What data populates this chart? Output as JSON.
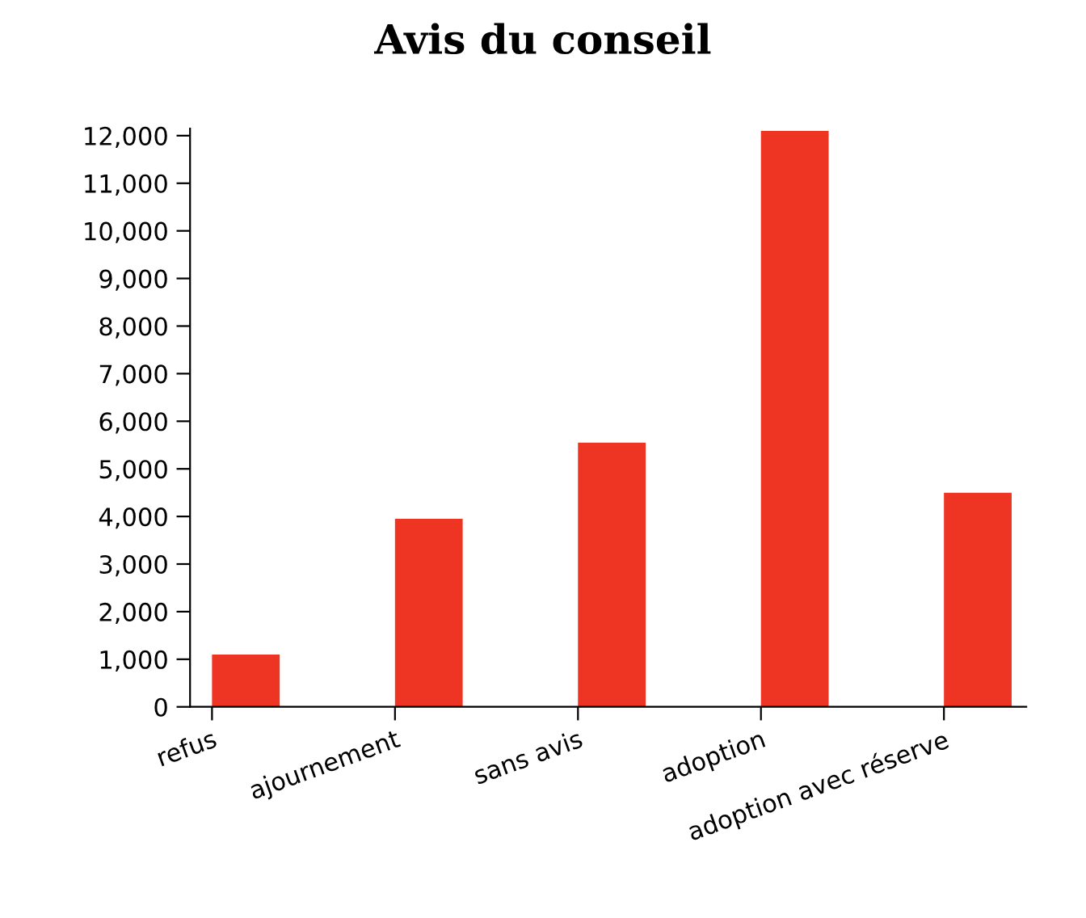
{
  "chart_data": {
    "type": "bar",
    "title": "Avis du conseil",
    "categories": [
      "refus",
      "ajournement",
      "sans avis",
      "adoption",
      "adoption avec réserve"
    ],
    "values": [
      1100,
      3950,
      5550,
      12100,
      4500
    ],
    "color": "#ee3524",
    "ylim": [
      0,
      12150
    ],
    "yticks": [
      {
        "value": 0,
        "label": "0"
      },
      {
        "value": 1000,
        "label": "1,000"
      },
      {
        "value": 2000,
        "label": "2,000"
      },
      {
        "value": 3000,
        "label": "3,000"
      },
      {
        "value": 4000,
        "label": "4,000"
      },
      {
        "value": 5000,
        "label": "5,000"
      },
      {
        "value": 6000,
        "label": "6,000"
      },
      {
        "value": 7000,
        "label": "7,000"
      },
      {
        "value": 8000,
        "label": "8,000"
      },
      {
        "value": 9000,
        "label": "9,000"
      },
      {
        "value": 10000,
        "label": "10,000"
      },
      {
        "value": 11000,
        "label": "11,000"
      },
      {
        "value": 12000,
        "label": "12,000"
      }
    ],
    "grid": false
  }
}
